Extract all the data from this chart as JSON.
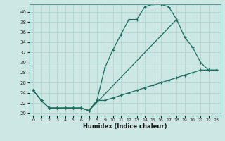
{
  "xlabel": "Humidex (Indice chaleur)",
  "xlim": [
    -0.5,
    23.5
  ],
  "ylim": [
    19.5,
    41.5
  ],
  "xticks": [
    0,
    1,
    2,
    3,
    4,
    5,
    6,
    7,
    8,
    9,
    10,
    11,
    12,
    13,
    14,
    15,
    16,
    17,
    18,
    19,
    20,
    21,
    22,
    23
  ],
  "yticks": [
    20,
    22,
    24,
    26,
    28,
    30,
    32,
    34,
    36,
    38,
    40
  ],
  "bg_color": "#cde8e4",
  "line_color": "#1a6e5e",
  "grid_color": "#b0d4d0",
  "line1_x": [
    0,
    1,
    2,
    3,
    4,
    5,
    6,
    7,
    8,
    9,
    10,
    11,
    12,
    13,
    14,
    15,
    16,
    17,
    18
  ],
  "line1_y": [
    24.5,
    22.5,
    21,
    21,
    21,
    21,
    21,
    20.5,
    22.5,
    29,
    32.5,
    35.5,
    38.5,
    38.5,
    41,
    41.5,
    41.5,
    41,
    38.5
  ],
  "line2_x": [
    0,
    1,
    2,
    3,
    4,
    5,
    6,
    7,
    18,
    19,
    20,
    21,
    22,
    23
  ],
  "line2_y": [
    24.5,
    22.5,
    21,
    21,
    21,
    21,
    21,
    20.5,
    38.5,
    35,
    33,
    30,
    28.5,
    28.5
  ],
  "line3_x": [
    0,
    1,
    2,
    3,
    4,
    5,
    6,
    7,
    8,
    9,
    10,
    11,
    12,
    13,
    14,
    15,
    16,
    17,
    18,
    19,
    20,
    21,
    22,
    23
  ],
  "line3_y": [
    24.5,
    22.5,
    21,
    21,
    21,
    21,
    21,
    20.5,
    22.5,
    22.5,
    23,
    23.5,
    24,
    24.5,
    25,
    25.5,
    26,
    26.5,
    27,
    27.5,
    28,
    28.5,
    28.5,
    28.5
  ]
}
